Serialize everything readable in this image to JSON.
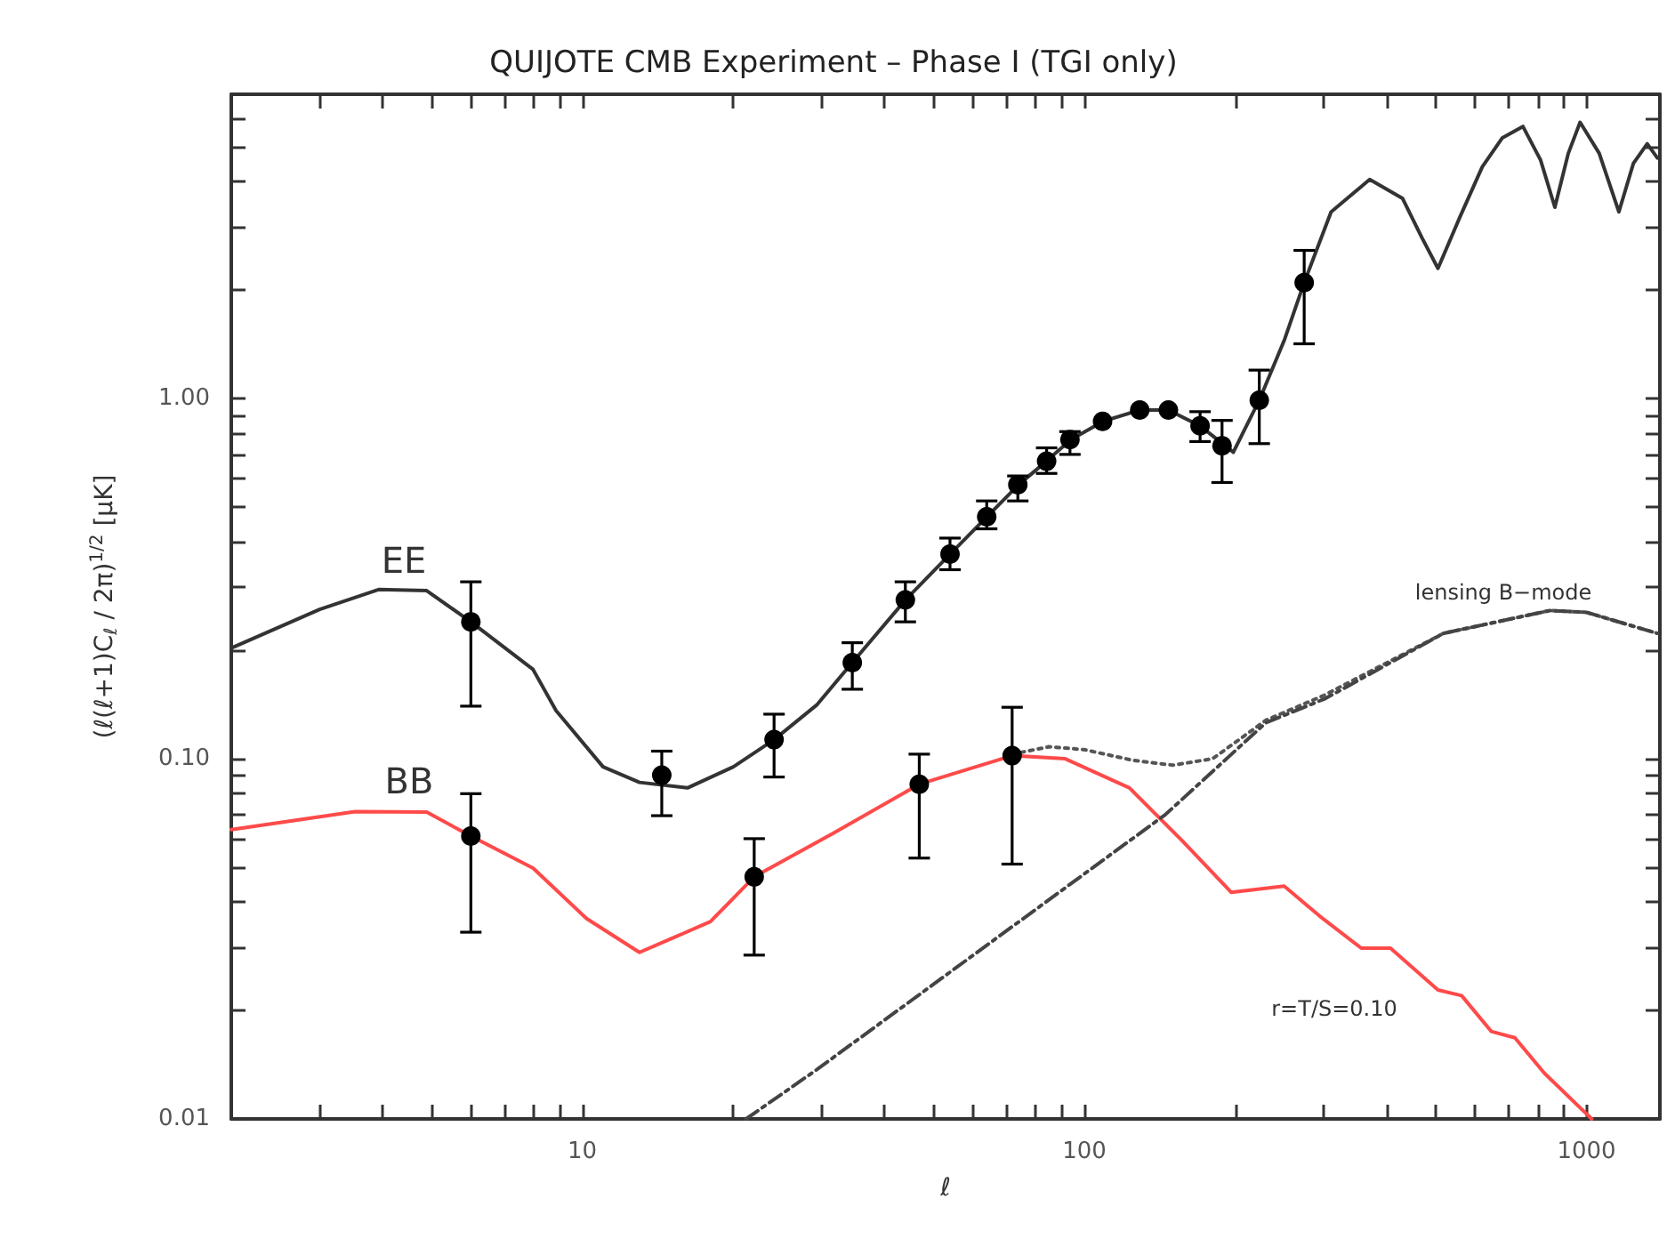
{
  "chart_data": {
    "type": "line",
    "title": "QUIJOTE CMB Experiment – Phase I (TGI only)",
    "xlabel": "ℓ",
    "ylabel": "(ℓ(ℓ+1)C$_{ℓ}$ / 2π)$^{1/2}$ [μK]",
    "log": "xy",
    "grid": false,
    "marker": "none",
    "line_style": "solid",
    "xlim": [
      2,
      1400
    ],
    "ylim": [
      0.01,
      7
    ],
    "xticks": [
      {
        "value": 3,
        "label": null
      },
      {
        "value": 4,
        "label": null
      },
      {
        "value": 5,
        "label": null
      },
      {
        "value": 6,
        "label": null
      },
      {
        "value": 7,
        "label": null
      },
      {
        "value": 8,
        "label": null
      },
      {
        "value": 9,
        "label": null
      },
      10,
      {
        "value": 20,
        "label": null
      },
      {
        "value": 30,
        "label": null
      },
      {
        "value": 40,
        "label": null
      },
      {
        "value": 50,
        "label": null
      },
      {
        "value": 60,
        "label": null
      },
      {
        "value": 70,
        "label": null
      },
      {
        "value": 80,
        "label": null
      },
      {
        "value": 90,
        "label": null
      },
      100,
      {
        "value": 200,
        "label": null
      },
      {
        "value": 300,
        "label": null
      },
      {
        "value": 400,
        "label": null
      },
      {
        "value": 500,
        "label": null
      },
      {
        "value": 600,
        "label": null
      },
      {
        "value": 700,
        "label": null
      },
      {
        "value": 800,
        "label": null
      },
      {
        "value": 900,
        "label": null
      },
      1000
    ],
    "yticks": [
      0.01,
      {
        "value": 0.02,
        "label": null
      },
      {
        "value": 0.03,
        "label": null
      },
      {
        "value": 0.04,
        "label": null
      },
      {
        "value": 0.05,
        "label": null
      },
      {
        "value": 0.06,
        "label": null
      },
      {
        "value": 0.07,
        "label": null
      },
      {
        "value": 0.08,
        "label": null
      },
      {
        "value": 0.09,
        "label": null
      },
      {
        "value": 0.1,
        "label": "0.10"
      },
      {
        "value": 0.2,
        "label": null
      },
      {
        "value": 0.3,
        "label": null
      },
      {
        "value": 0.4,
        "label": null
      },
      {
        "value": 0.5,
        "label": null
      },
      {
        "value": 0.6,
        "label": null
      },
      {
        "value": 0.7,
        "label": null
      },
      {
        "value": 0.8,
        "label": null
      },
      {
        "value": 0.9,
        "label": null
      },
      {
        "value": 1,
        "label": "1.00"
      },
      {
        "value": 2,
        "label": null
      },
      {
        "value": 3,
        "label": null
      },
      {
        "value": 4,
        "label": null
      },
      {
        "value": 5,
        "label": null
      },
      {
        "value": 6,
        "label": null
      },
      {
        "value": 7,
        "label": null
      }
    ],
    "series": [
      {
        "color": "#333333",
        "x": [
          2,
          3,
          3.93,
          4.9,
          6,
          7.98,
          8.87,
          11,
          13,
          16.2,
          20,
          24.1,
          29.3,
          34.5,
          44,
          54,
          64,
          74,
          84,
          94,
          109,
          129,
          147,
          170,
          198,
          223,
          250,
          274,
          310,
          370,
          430,
          470,
          506,
          560,
          620,
          680,
          747,
          810,
          865,
          920,
          971,
          1060,
          1160,
          1240,
          1321,
          1384
        ],
        "values": [
          0.203,
          0.26,
          0.295,
          0.293,
          0.24,
          0.177,
          0.136,
          0.095,
          0.086,
          0.083,
          0.095,
          0.113,
          0.141,
          0.185,
          0.276,
          0.37,
          0.47,
          0.577,
          0.67,
          0.77,
          0.865,
          0.93,
          0.93,
          0.84,
          0.71,
          0.99,
          1.45,
          2.1,
          3.3,
          4.06,
          3.6,
          2.8,
          2.3,
          3.2,
          4.4,
          5.3,
          5.7,
          4.6,
          3.4,
          4.8,
          5.85,
          4.8,
          3.3,
          4.5,
          5.1,
          4.66
        ]
      },
      {
        "color": "#555555",
        "line_style": "dotted",
        "x": [
          71.8,
          85,
          100,
          125,
          150,
          180,
          230,
          300,
          519,
          845,
          1000,
          1384
        ],
        "values": [
          0.103,
          0.108,
          0.106,
          0.099,
          0.096,
          0.1,
          0.128,
          0.15,
          0.223,
          0.258,
          0.255,
          0.223
        ]
      },
      {
        "color": "#ff4a4a",
        "x": [
          2,
          3.53,
          4.9,
          6,
          7.98,
          10.2,
          13,
          18,
          22,
          31.8,
          46.9,
          71.8,
          91.6,
          123,
          157,
          196,
          250,
          294,
          356,
          407,
          506,
          564,
          646,
          720,
          824,
          1024
        ],
        "values": [
          0.0636,
          0.0713,
          0.0711,
          0.061,
          0.0497,
          0.036,
          0.029,
          0.0353,
          0.047,
          0.0624,
          0.085,
          0.102,
          0.1,
          0.083,
          0.059,
          0.0426,
          0.0443,
          0.0366,
          0.0298,
          0.0298,
          0.0228,
          0.022,
          0.0175,
          0.0168,
          0.0134,
          0.01
        ]
      },
      {
        "color": "#444444",
        "line_style": "dashdot",
        "x": [
          21.2,
          29.3,
          145,
          230,
          302,
          519,
          845,
          1000,
          1384
        ],
        "values": [
          0.01,
          0.0137,
          0.07,
          0.126,
          0.147,
          0.223,
          0.258,
          0.255,
          0.223
        ]
      },
      {
        "type": "scatter",
        "marker": "circle",
        "color": "#000000",
        "x": [
          6,
          14.4,
          24.1,
          34.5,
          44,
          54,
          63.9,
          73.7,
          84.1,
          93.6,
          108.7,
          128.9,
          147,
          170,
          188,
          223,
          274
        ],
        "values": [
          0.24,
          0.09,
          0.113,
          0.185,
          0.276,
          0.37,
          0.47,
          0.577,
          0.67,
          0.77,
          0.865,
          0.93,
          0.93,
          0.84,
          0.74,
          0.99,
          2.1
        ],
        "errors": [
          [
            0.14,
            0.31
          ],
          [
            0.0695,
            0.105
          ],
          [
            0.089,
            0.133
          ],
          [
            0.156,
            0.21
          ],
          [
            0.24,
            0.31
          ],
          [
            0.335,
            0.41
          ],
          [
            0.435,
            0.52
          ],
          [
            0.52,
            0.61
          ],
          [
            0.62,
            0.73
          ],
          [
            0.7,
            0.81
          ],
          null,
          null,
          null,
          [
            0.76,
            0.92
          ],
          [
            0.585,
            0.87
          ],
          [
            0.75,
            1.2
          ],
          [
            1.42,
            2.58
          ]
        ]
      },
      {
        "type": "scatter",
        "marker": "circle",
        "color": "#000000",
        "x": [
          6,
          22,
          46.9,
          71.8
        ],
        "values": [
          0.061,
          0.047,
          0.085,
          0.102
        ],
        "errors": [
          [
            0.033,
            0.08
          ],
          [
            0.0285,
            0.06
          ],
          [
            0.053,
            0.103
          ],
          [
            0.051,
            0.139
          ]
        ]
      }
    ],
    "annotations": [
      "EE",
      "BB",
      "lensing B−mode",
      "r=T/S=0.10"
    ]
  }
}
